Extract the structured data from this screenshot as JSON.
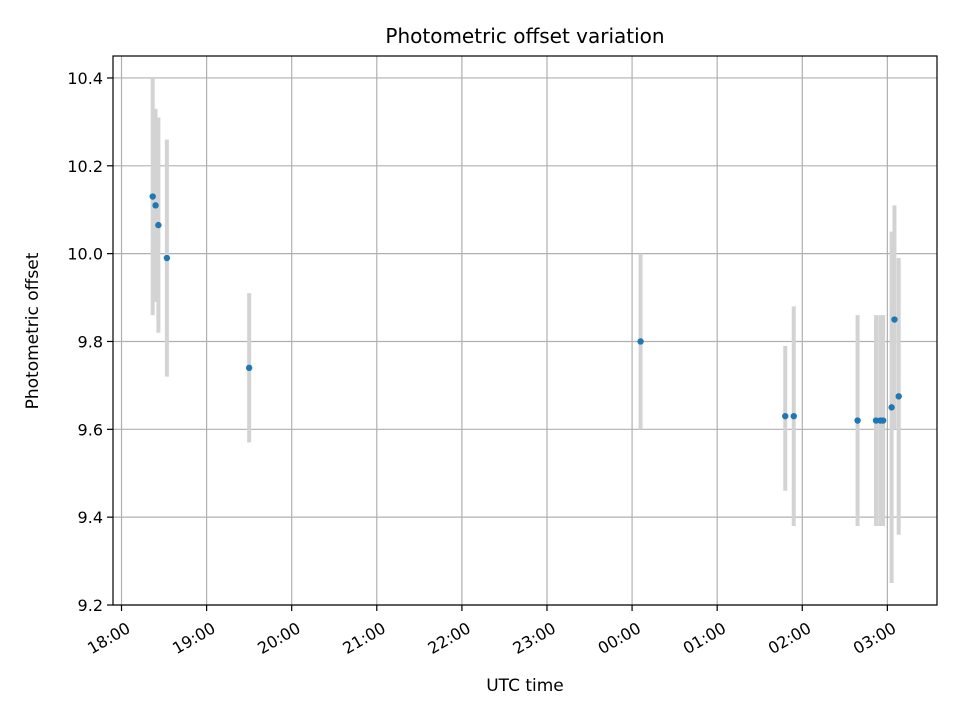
{
  "chart_data": {
    "type": "scatter",
    "title": "Photometric offset variation",
    "xlabel": "UTC time",
    "ylabel": "Photometric offset",
    "x_axis": {
      "kind": "time",
      "range": [
        "18:00",
        "03:35"
      ],
      "ticks": [
        "18:00",
        "19:00",
        "20:00",
        "21:00",
        "22:00",
        "23:00",
        "00:00",
        "01:00",
        "02:00",
        "03:00"
      ]
    },
    "y_axis": {
      "range": [
        9.2,
        10.45
      ],
      "ticks": [
        "9.2",
        "9.4",
        "9.6",
        "9.8",
        "10.0",
        "10.2",
        "10.4"
      ]
    },
    "grid": true,
    "colors": {
      "point": "#1f77b4",
      "errorbar": "#d3d3d3",
      "grid": "#b0b0b0"
    },
    "points": [
      {
        "time": "18:22",
        "y": 10.13,
        "ylow": 9.86,
        "yhigh": 10.4
      },
      {
        "time": "18:24",
        "y": 10.11,
        "ylow": 9.89,
        "yhigh": 10.33
      },
      {
        "time": "18:26",
        "y": 10.065,
        "ylow": 9.82,
        "yhigh": 10.31
      },
      {
        "time": "18:32",
        "y": 9.99,
        "ylow": 9.72,
        "yhigh": 10.26
      },
      {
        "time": "19:30",
        "y": 9.74,
        "ylow": 9.57,
        "yhigh": 9.91
      },
      {
        "time": "00:06",
        "y": 9.8,
        "ylow": 9.6,
        "yhigh": 10.0
      },
      {
        "time": "01:48",
        "y": 9.63,
        "ylow": 9.46,
        "yhigh": 9.79
      },
      {
        "time": "01:54",
        "y": 9.63,
        "ylow": 9.38,
        "yhigh": 9.88
      },
      {
        "time": "02:39",
        "y": 9.62,
        "ylow": 9.38,
        "yhigh": 9.86
      },
      {
        "time": "02:52",
        "y": 9.62,
        "ylow": 9.38,
        "yhigh": 9.86
      },
      {
        "time": "02:55",
        "y": 9.62,
        "ylow": 9.38,
        "yhigh": 9.86
      },
      {
        "time": "02:57",
        "y": 9.62,
        "ylow": 9.38,
        "yhigh": 9.86
      },
      {
        "time": "03:03",
        "y": 9.65,
        "ylow": 9.25,
        "yhigh": 10.05
      },
      {
        "time": "03:05",
        "y": 9.85,
        "ylow": 9.6,
        "yhigh": 10.11
      },
      {
        "time": "03:08",
        "y": 9.675,
        "ylow": 9.36,
        "yhigh": 9.99
      }
    ]
  }
}
